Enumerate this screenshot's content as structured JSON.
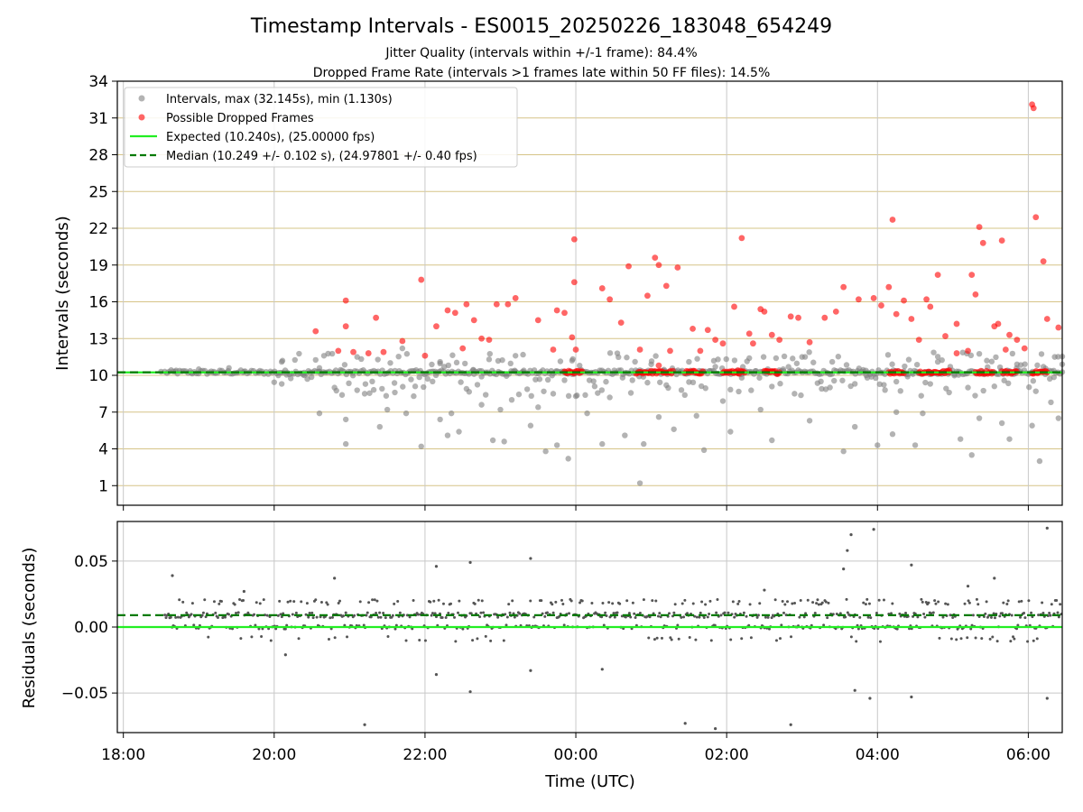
{
  "figure": {
    "title": "Timestamp Intervals - ES0015_20250226_183048_654249",
    "subtitle_1": "Jitter Quality (intervals within +/-1 frame): 84.4%",
    "subtitle_2": "Dropped Frame Rate (intervals >1 frames late within 50 FF files): 14.5%",
    "xlabel": "Time (UTC)"
  },
  "colors": {
    "intervals": "#808080",
    "dropped": "#ff0000",
    "expected": "#22ee22",
    "median": "#007a00",
    "hgrid": "#d6c487",
    "vgrid": "#c8c8c8"
  },
  "chart_data": [
    {
      "type": "scatter",
      "panel": "intervals",
      "ylabel": "Intervals (seconds)",
      "xlabel": "",
      "x_axis_units": "hours of UTC time (18.0 = 18:00 on first day, 24+ = next day)",
      "xlim": [
        17.92,
        30.45
      ],
      "ylim": [
        -0.6,
        34
      ],
      "yticks": [
        1,
        4,
        7,
        10,
        13,
        16,
        19,
        22,
        25,
        28,
        31,
        34
      ],
      "xtick_labels": [
        "18:00",
        "20:00",
        "22:00",
        "00:00",
        "02:00",
        "04:00",
        "06:00"
      ],
      "xtick_values": [
        18,
        20,
        22,
        24,
        26,
        28,
        30
      ],
      "grid": "on",
      "legend_position": "top-left",
      "legend": [
        "Intervals, max (32.145s), min (1.130s)",
        "Possible Dropped Frames",
        "Expected (10.240s), (25.00000 fps)",
        "Median (10.249 +/- 0.102 s), (24.97801 +/- 0.40 fps)"
      ],
      "expected_interval": 10.24,
      "median_interval": 10.249,
      "series": [
        {
          "name": "Intervals, max (32.145s), min (1.130s)",
          "points": [
            [
              18.5,
              10.3
            ],
            [
              18.7,
              10.4
            ],
            [
              18.9,
              10.2
            ],
            [
              19.0,
              10.5
            ],
            [
              19.2,
              10.3
            ],
            [
              19.4,
              10.6
            ],
            [
              19.6,
              10.3
            ],
            [
              19.8,
              10.2
            ],
            [
              20.1,
              11.1
            ],
            [
              20.1,
              9.3
            ],
            [
              20.4,
              10.0
            ],
            [
              20.6,
              10.6
            ],
            [
              20.6,
              6.9
            ],
            [
              20.8,
              9.0
            ],
            [
              20.9,
              8.4
            ],
            [
              20.95,
              6.4
            ],
            [
              20.95,
              4.4
            ],
            [
              21.1,
              11.5
            ],
            [
              21.2,
              8.5
            ],
            [
              21.3,
              9.5
            ],
            [
              21.4,
              5.8
            ],
            [
              21.5,
              7.2
            ],
            [
              21.6,
              8.6
            ],
            [
              21.7,
              12.2
            ],
            [
              21.75,
              6.9
            ],
            [
              21.85,
              8.3
            ],
            [
              21.95,
              4.2
            ],
            [
              22.1,
              9.5
            ],
            [
              22.2,
              11.1
            ],
            [
              22.2,
              6.4
            ],
            [
              22.3,
              5.1
            ],
            [
              22.35,
              6.9
            ],
            [
              22.45,
              5.4
            ],
            [
              22.55,
              8.9
            ],
            [
              22.65,
              10.1
            ],
            [
              22.75,
              7.6
            ],
            [
              22.85,
              11.3
            ],
            [
              22.9,
              4.7
            ],
            [
              23.0,
              7.2
            ],
            [
              23.05,
              4.6
            ],
            [
              23.15,
              8.0
            ],
            [
              23.2,
              11.6
            ],
            [
              23.3,
              10.3
            ],
            [
              23.4,
              5.9
            ],
            [
              23.5,
              7.4
            ],
            [
              23.6,
              3.8
            ],
            [
              23.7,
              8.5
            ],
            [
              23.75,
              4.3
            ],
            [
              23.85,
              9.6
            ],
            [
              23.9,
              3.2
            ],
            [
              23.95,
              11.2
            ],
            [
              24.0,
              8.3
            ],
            [
              24.05,
              10.8
            ],
            [
              24.15,
              6.9
            ],
            [
              24.25,
              9.1
            ],
            [
              24.35,
              4.4
            ],
            [
              24.45,
              8.2
            ],
            [
              24.55,
              11.8
            ],
            [
              24.65,
              5.1
            ],
            [
              24.75,
              9.6
            ],
            [
              24.85,
              10.2
            ],
            [
              24.85,
              1.2
            ],
            [
              24.9,
              4.4
            ],
            [
              25.0,
              10.9
            ],
            [
              25.1,
              6.6
            ],
            [
              25.2,
              9.2
            ],
            [
              25.3,
              5.6
            ],
            [
              25.4,
              8.8
            ],
            [
              25.5,
              11.1
            ],
            [
              25.6,
              6.7
            ],
            [
              25.7,
              3.9
            ],
            [
              25.85,
              10.7
            ],
            [
              25.95,
              7.9
            ],
            [
              26.05,
              5.4
            ],
            [
              26.2,
              9.8
            ],
            [
              26.3,
              11.4
            ],
            [
              26.45,
              7.2
            ],
            [
              26.6,
              4.7
            ],
            [
              26.75,
              10.5
            ],
            [
              26.9,
              8.5
            ],
            [
              27.0,
              11.5
            ],
            [
              27.1,
              6.3
            ],
            [
              27.25,
              9.5
            ],
            [
              27.4,
              11.1
            ],
            [
              27.55,
              3.8
            ],
            [
              27.7,
              5.8
            ],
            [
              27.85,
              10.0
            ],
            [
              28.0,
              4.3
            ],
            [
              28.1,
              8.8
            ],
            [
              28.2,
              5.2
            ],
            [
              28.25,
              7.0
            ],
            [
              28.4,
              9.9
            ],
            [
              28.5,
              4.3
            ],
            [
              28.6,
              6.9
            ],
            [
              28.7,
              9.3
            ],
            [
              28.8,
              11.1
            ],
            [
              28.95,
              8.6
            ],
            [
              29.1,
              4.8
            ],
            [
              29.2,
              9.0
            ],
            [
              29.25,
              3.5
            ],
            [
              29.35,
              6.5
            ],
            [
              29.45,
              11.2
            ],
            [
              29.55,
              9.1
            ],
            [
              29.65,
              6.1
            ],
            [
              29.75,
              4.8
            ],
            [
              29.85,
              10.9
            ],
            [
              30.05,
              5.9
            ],
            [
              30.1,
              8.7
            ],
            [
              30.15,
              3.0
            ],
            [
              30.2,
              10.7
            ],
            [
              30.3,
              7.8
            ],
            [
              30.35,
              11.5
            ],
            [
              30.4,
              6.5
            ],
            [
              30.45,
              10.9
            ]
          ]
        },
        {
          "name": "Possible Dropped Frames",
          "points": [
            [
              20.55,
              13.6
            ],
            [
              20.85,
              12.0
            ],
            [
              20.95,
              16.1
            ],
            [
              20.95,
              14.0
            ],
            [
              21.05,
              11.9
            ],
            [
              21.25,
              11.8
            ],
            [
              21.35,
              14.7
            ],
            [
              21.45,
              11.9
            ],
            [
              21.7,
              12.8
            ],
            [
              21.95,
              17.8
            ],
            [
              22.0,
              11.6
            ],
            [
              22.15,
              14.0
            ],
            [
              22.3,
              15.3
            ],
            [
              22.4,
              15.1
            ],
            [
              22.5,
              12.2
            ],
            [
              22.55,
              15.8
            ],
            [
              22.65,
              14.5
            ],
            [
              22.75,
              13.0
            ],
            [
              22.85,
              12.9
            ],
            [
              22.95,
              15.8
            ],
            [
              23.1,
              15.8
            ],
            [
              23.2,
              16.3
            ],
            [
              23.5,
              14.5
            ],
            [
              23.7,
              12.1
            ],
            [
              23.75,
              15.3
            ],
            [
              23.85,
              15.1
            ],
            [
              23.95,
              13.1
            ],
            [
              24.0,
              12.1
            ],
            [
              23.98,
              21.1
            ],
            [
              23.98,
              17.6
            ],
            [
              24.35,
              17.1
            ],
            [
              24.45,
              16.2
            ],
            [
              24.6,
              14.3
            ],
            [
              24.7,
              18.9
            ],
            [
              24.85,
              12.1
            ],
            [
              24.95,
              16.5
            ],
            [
              25.05,
              19.6
            ],
            [
              25.1,
              19.0
            ],
            [
              25.2,
              17.3
            ],
            [
              25.25,
              12.0
            ],
            [
              25.35,
              18.8
            ],
            [
              25.55,
              13.8
            ],
            [
              25.65,
              12.0
            ],
            [
              25.75,
              13.7
            ],
            [
              25.85,
              12.9
            ],
            [
              25.95,
              12.6
            ],
            [
              26.1,
              15.6
            ],
            [
              26.2,
              21.2
            ],
            [
              26.3,
              13.4
            ],
            [
              26.35,
              12.6
            ],
            [
              26.45,
              15.4
            ],
            [
              26.5,
              15.2
            ],
            [
              26.6,
              13.3
            ],
            [
              26.7,
              12.9
            ],
            [
              26.85,
              14.8
            ],
            [
              26.95,
              14.7
            ],
            [
              27.1,
              12.7
            ],
            [
              27.3,
              14.7
            ],
            [
              27.45,
              15.2
            ],
            [
              27.55,
              17.2
            ],
            [
              27.75,
              16.2
            ],
            [
              27.95,
              16.3
            ],
            [
              28.05,
              15.7
            ],
            [
              28.15,
              17.2
            ],
            [
              28.2,
              22.7
            ],
            [
              28.25,
              15.0
            ],
            [
              28.35,
              16.1
            ],
            [
              28.45,
              14.6
            ],
            [
              28.55,
              12.9
            ],
            [
              28.65,
              16.2
            ],
            [
              28.7,
              15.6
            ],
            [
              28.8,
              18.2
            ],
            [
              28.9,
              13.2
            ],
            [
              29.05,
              14.2
            ],
            [
              29.2,
              12.0
            ],
            [
              29.25,
              18.2
            ],
            [
              29.3,
              16.6
            ],
            [
              29.35,
              22.1
            ],
            [
              29.4,
              20.8
            ],
            [
              29.55,
              14.0
            ],
            [
              29.6,
              14.2
            ],
            [
              29.65,
              21.0
            ],
            [
              29.7,
              12.1
            ],
            [
              29.75,
              13.3
            ],
            [
              29.85,
              12.9
            ],
            [
              29.95,
              12.2
            ],
            [
              30.05,
              32.1
            ],
            [
              30.07,
              31.8
            ],
            [
              30.1,
              22.9
            ],
            [
              30.2,
              19.3
            ],
            [
              30.25,
              14.6
            ],
            [
              30.4,
              13.9
            ],
            [
              29.05,
              11.8
            ],
            [
              28.95,
              10.4
            ],
            [
              25.1,
              10.8
            ],
            [
              26.15,
              10.4
            ]
          ],
          "clusters": [
            [
              23.85,
              24.1
            ],
            [
              24.8,
              25.3
            ],
            [
              25.45,
              25.7
            ],
            [
              25.95,
              26.25
            ],
            [
              26.5,
              26.7
            ],
            [
              28.15,
              28.35
            ],
            [
              28.55,
              28.95
            ],
            [
              29.3,
              29.55
            ],
            [
              29.65,
              29.85
            ],
            [
              30.05,
              30.25
            ]
          ],
          "cluster_value": 10.25
        }
      ]
    },
    {
      "type": "scatter",
      "panel": "residuals",
      "ylabel": "Residuals (seconds)",
      "xlabel": "Time (UTC)",
      "xlim": [
        17.92,
        30.45
      ],
      "ylim": [
        -0.08,
        0.08
      ],
      "yticks": [
        -0.05,
        0.0,
        0.05
      ],
      "ytick_labels": [
        "−0.05",
        "0.00",
        "0.05"
      ],
      "xtick_labels": [
        "18:00",
        "20:00",
        "22:00",
        "00:00",
        "02:00",
        "04:00",
        "06:00"
      ],
      "xtick_values": [
        18,
        20,
        22,
        24,
        26,
        28,
        30
      ],
      "grid": "on",
      "median_residual": 0.009,
      "expected_residual": 0.0,
      "outliers": [
        [
          18.65,
          0.039
        ],
        [
          19.6,
          0.027
        ],
        [
          20.8,
          0.037
        ],
        [
          20.15,
          -0.021
        ],
        [
          21.2,
          -0.074
        ],
        [
          22.15,
          0.046
        ],
        [
          22.15,
          -0.036
        ],
        [
          22.6,
          0.049
        ],
        [
          22.6,
          -0.049
        ],
        [
          23.4,
          0.052
        ],
        [
          23.4,
          -0.033
        ],
        [
          24.35,
          -0.032
        ],
        [
          25.45,
          -0.073
        ],
        [
          25.85,
          -0.077
        ],
        [
          26.5,
          0.028
        ],
        [
          26.85,
          -0.074
        ],
        [
          27.55,
          0.044
        ],
        [
          27.6,
          0.058
        ],
        [
          27.65,
          0.07
        ],
        [
          27.95,
          0.074
        ],
        [
          27.9,
          -0.054
        ],
        [
          27.7,
          -0.048
        ],
        [
          28.45,
          -0.053
        ],
        [
          28.45,
          0.047
        ],
        [
          29.2,
          0.031
        ],
        [
          29.55,
          0.037
        ],
        [
          30.25,
          0.075
        ],
        [
          30.25,
          -0.054
        ]
      ]
    }
  ]
}
